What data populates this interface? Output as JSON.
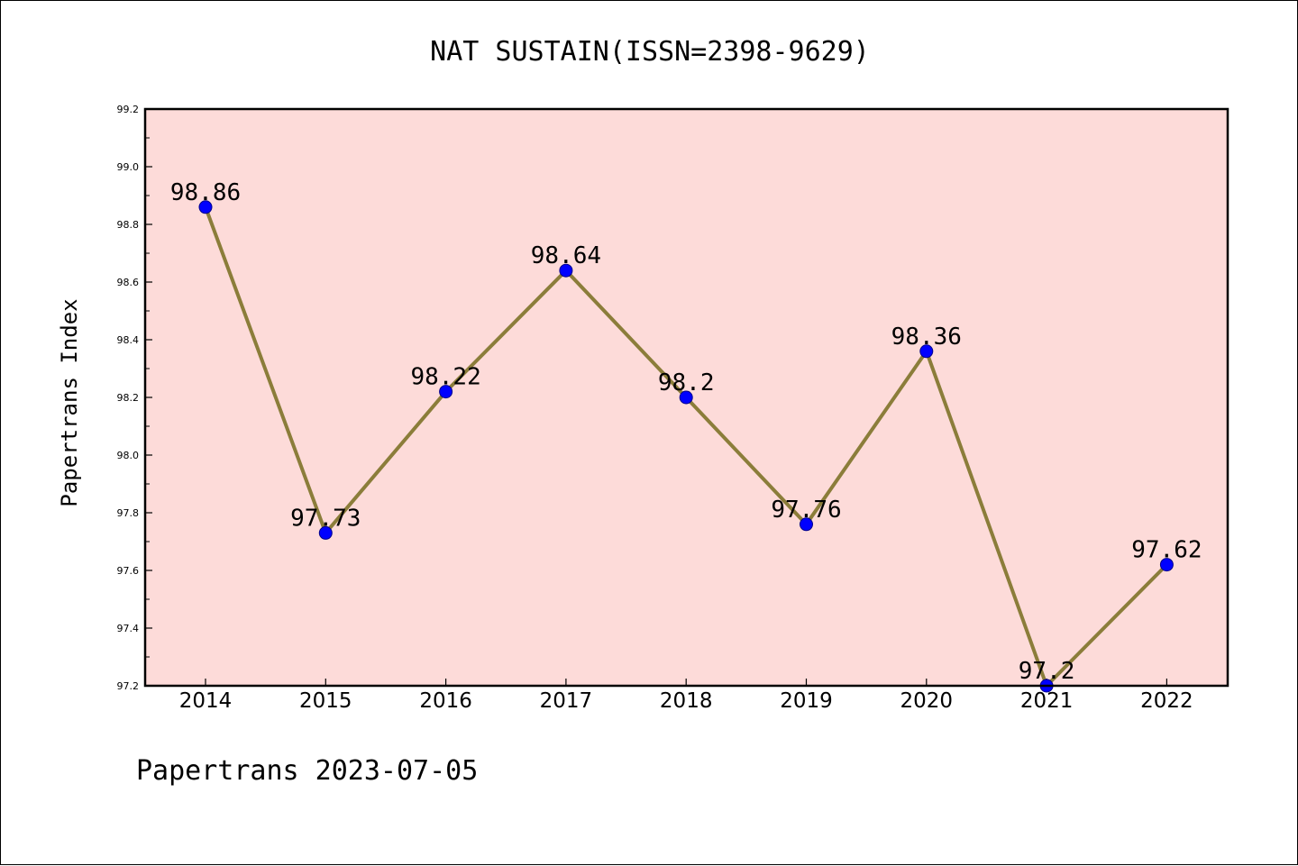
{
  "colors": {
    "plot_background": "#fddbd9",
    "line": "#8b7d3a",
    "marker_fill": "#0000ff",
    "marker_edge": "#00008b",
    "axis": "#000000"
  },
  "chart_data": {
    "type": "line",
    "title": "NAT SUSTAIN(ISSN=2398-9629)",
    "xlabel": "",
    "ylabel": "Papertrans Index",
    "categories": [
      "2014",
      "2015",
      "2016",
      "2017",
      "2018",
      "2019",
      "2020",
      "2021",
      "2022"
    ],
    "series": [
      {
        "values": [
          98.86,
          97.73,
          98.22,
          98.64,
          98.2,
          97.76,
          98.36,
          97.2,
          97.62
        ],
        "labels": [
          "98.86",
          "97.73",
          "98.22",
          "98.64",
          "98.2",
          "97.76",
          "98.36",
          "97.2",
          "97.62"
        ]
      }
    ],
    "ylim": [
      97.2,
      99.2
    ],
    "yticks": [
      97.2,
      97.4,
      97.6,
      97.8,
      98.0,
      98.2,
      98.4,
      98.6,
      98.8,
      99.0,
      99.2
    ],
    "ytick_labels": [
      "97.2",
      "97.4",
      "97.6",
      "97.8",
      "98.0",
      "98.2",
      "98.4",
      "98.6",
      "98.8",
      "99.0",
      "99.2"
    ],
    "grid": false,
    "legend": "none"
  },
  "footer": {
    "text": "Papertrans 2023-07-05"
  }
}
